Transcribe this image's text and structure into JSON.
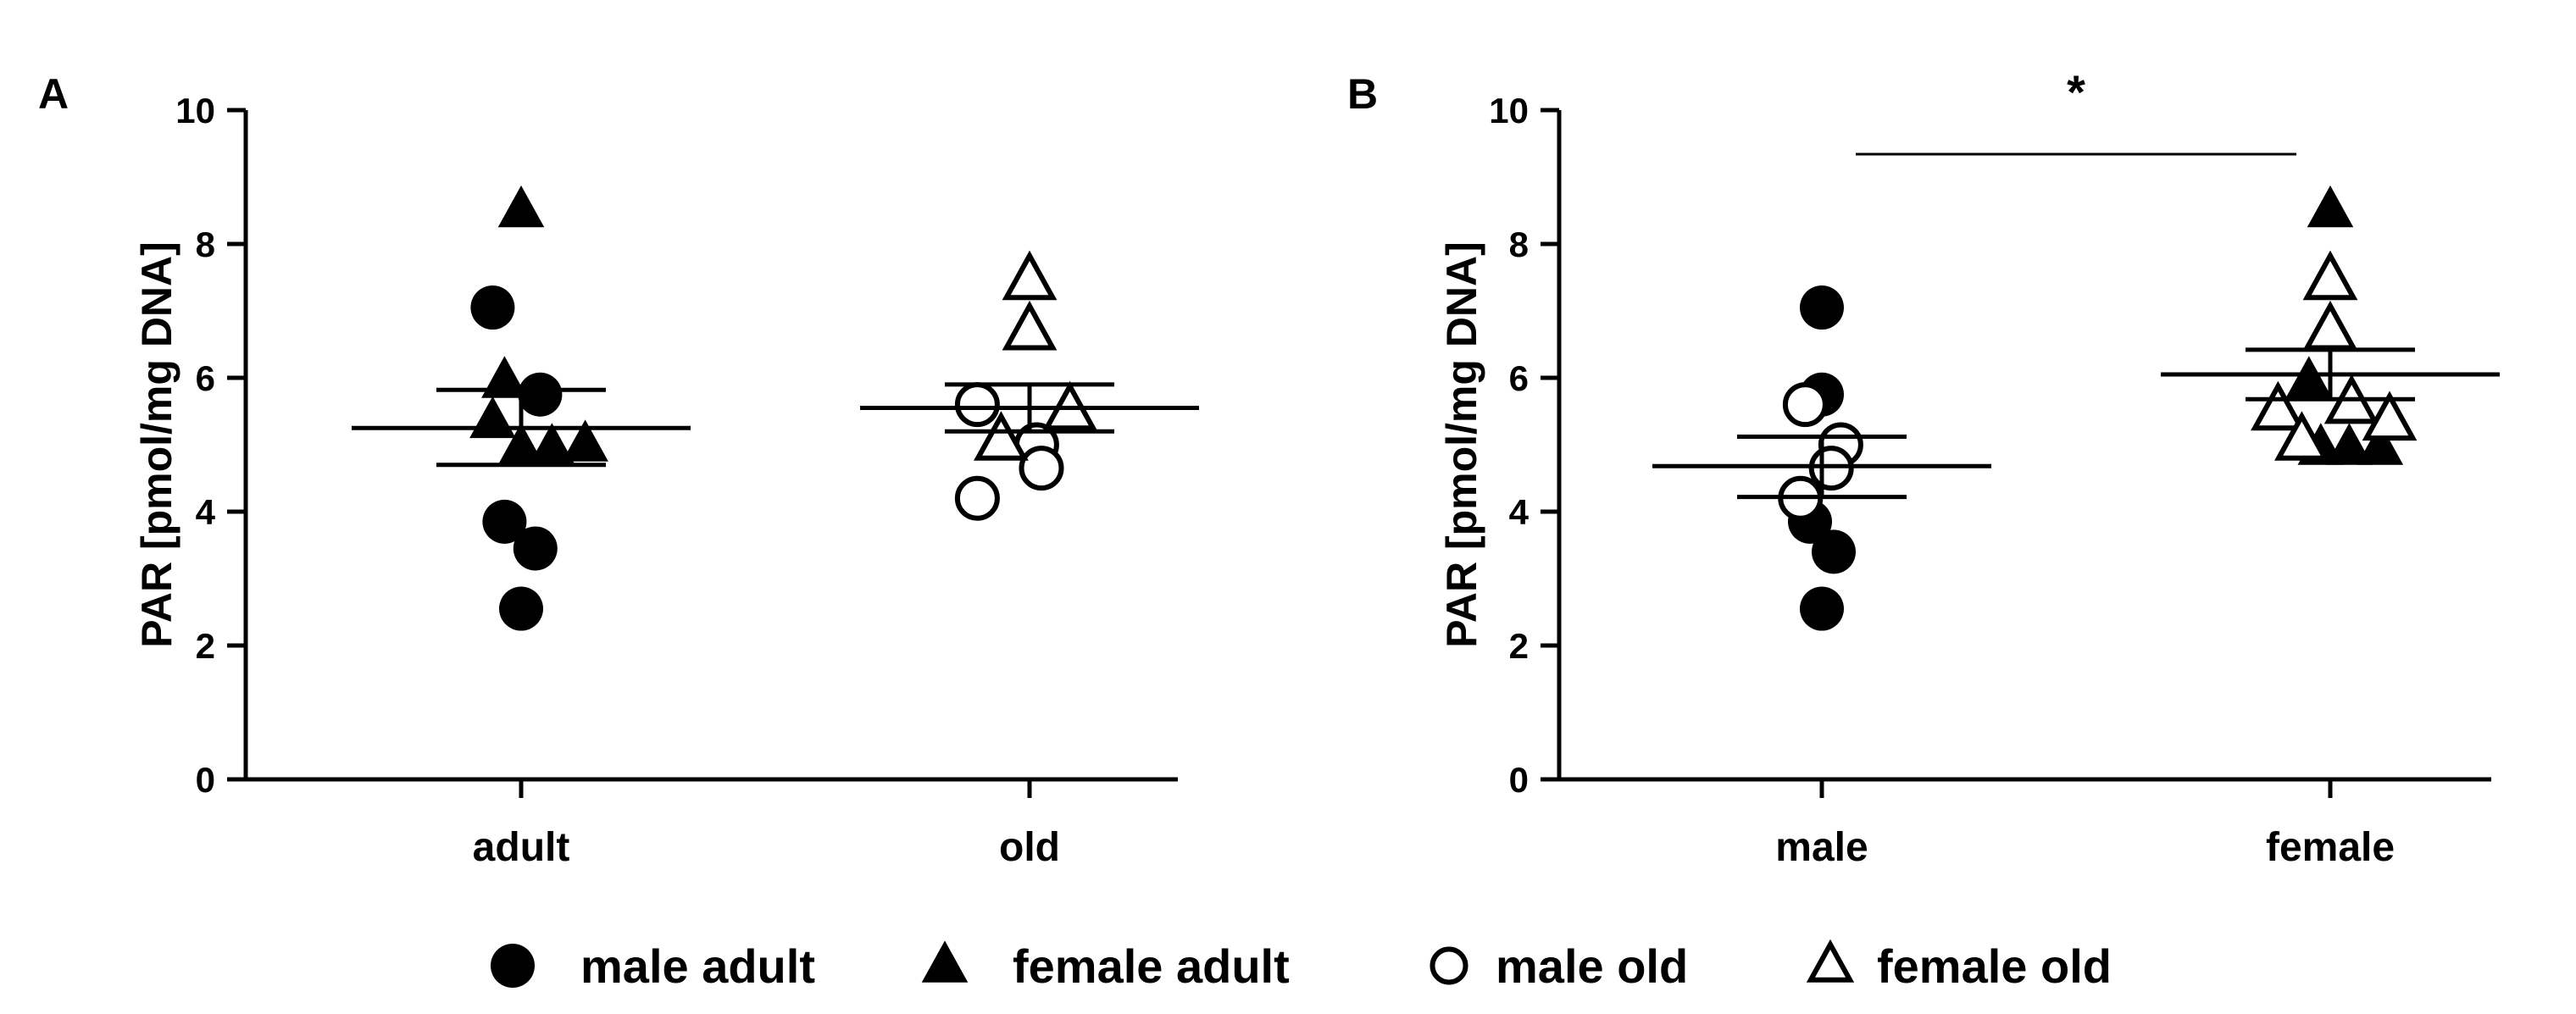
{
  "chart_data": [
    {
      "type": "scatter",
      "panel": "A",
      "ylabel": "PAR [pmol/mg DNA]",
      "xlabel": "",
      "ylim": [
        0,
        10
      ],
      "yticks": [
        "0",
        "2",
        "4",
        "6",
        "8",
        "10"
      ],
      "categories": [
        "adult",
        "old"
      ],
      "groups": [
        {
          "category": "adult",
          "mean": 5.25,
          "sem": [
            4.7,
            5.82
          ],
          "points": [
            {
              "marker": "filled-circle",
              "x": -0.12,
              "y": 7.05
            },
            {
              "marker": "filled-circle",
              "x": 0.08,
              "y": 5.75
            },
            {
              "marker": "filled-circle",
              "x": -0.07,
              "y": 3.85
            },
            {
              "marker": "filled-circle",
              "x": 0.06,
              "y": 3.45
            },
            {
              "marker": "filled-circle",
              "x": 0.0,
              "y": 2.55
            },
            {
              "marker": "filled-triangle",
              "x": 0.0,
              "y": 8.5
            },
            {
              "marker": "filled-triangle",
              "x": -0.07,
              "y": 5.95
            },
            {
              "marker": "filled-triangle",
              "x": -0.12,
              "y": 5.35
            },
            {
              "marker": "filled-triangle",
              "x": 0.0,
              "y": 4.95
            },
            {
              "marker": "filled-triangle",
              "x": 0.13,
              "y": 4.95
            },
            {
              "marker": "filled-triangle",
              "x": 0.27,
              "y": 5.0
            }
          ]
        },
        {
          "category": "old",
          "mean": 5.55,
          "sem": [
            5.2,
            5.9
          ],
          "points": [
            {
              "marker": "open-circle",
              "x": -0.22,
              "y": 5.6
            },
            {
              "marker": "open-circle",
              "x": 0.03,
              "y": 5.0
            },
            {
              "marker": "open-circle",
              "x": 0.05,
              "y": 4.65
            },
            {
              "marker": "open-circle",
              "x": -0.22,
              "y": 4.2
            },
            {
              "marker": "open-triangle",
              "x": 0.0,
              "y": 7.45
            },
            {
              "marker": "open-triangle",
              "x": 0.0,
              "y": 6.7
            },
            {
              "marker": "open-triangle",
              "x": 0.17,
              "y": 5.5
            },
            {
              "marker": "open-triangle",
              "x": -0.12,
              "y": 5.05
            }
          ]
        }
      ]
    },
    {
      "type": "scatter",
      "panel": "B",
      "ylabel": "PAR [pmol/mg DNA]",
      "xlabel": "",
      "ylim": [
        0,
        10
      ],
      "yticks": [
        "0",
        "2",
        "4",
        "6",
        "8",
        "10"
      ],
      "categories": [
        "male",
        "female"
      ],
      "significance": {
        "between": [
          "male",
          "female"
        ],
        "label": "*"
      },
      "groups": [
        {
          "category": "male",
          "mean": 4.68,
          "sem": [
            4.22,
            5.12
          ],
          "points": [
            {
              "marker": "filled-circle",
              "x": 0.0,
              "y": 7.05
            },
            {
              "marker": "filled-circle",
              "x": 0.0,
              "y": 5.75
            },
            {
              "marker": "filled-circle",
              "x": -0.05,
              "y": 3.85
            },
            {
              "marker": "filled-circle",
              "x": 0.05,
              "y": 3.4
            },
            {
              "marker": "filled-circle",
              "x": 0.0,
              "y": 2.55
            },
            {
              "marker": "open-circle",
              "x": -0.07,
              "y": 5.6
            },
            {
              "marker": "open-circle",
              "x": 0.08,
              "y": 5.0
            },
            {
              "marker": "open-circle",
              "x": 0.04,
              "y": 4.65
            },
            {
              "marker": "open-circle",
              "x": -0.09,
              "y": 4.2
            }
          ]
        },
        {
          "category": "female",
          "mean": 6.05,
          "sem": [
            5.68,
            6.42
          ],
          "points": [
            {
              "marker": "filled-triangle",
              "x": 0.0,
              "y": 8.5
            },
            {
              "marker": "filled-triangle",
              "x": -0.09,
              "y": 5.95
            },
            {
              "marker": "filled-triangle",
              "x": -0.04,
              "y": 4.95
            },
            {
              "marker": "filled-triangle",
              "x": 0.08,
              "y": 4.95
            },
            {
              "marker": "filled-triangle",
              "x": 0.21,
              "y": 4.95
            },
            {
              "marker": "open-triangle",
              "x": 0.0,
              "y": 7.45
            },
            {
              "marker": "open-triangle",
              "x": 0.0,
              "y": 6.7
            },
            {
              "marker": "open-triangle",
              "x": 0.09,
              "y": 5.6
            },
            {
              "marker": "open-triangle",
              "x": -0.22,
              "y": 5.5
            },
            {
              "marker": "open-triangle",
              "x": 0.25,
              "y": 5.35
            },
            {
              "marker": "open-triangle",
              "x": -0.12,
              "y": 5.05
            }
          ]
        }
      ]
    }
  ],
  "legend": {
    "placement": "bottom-center",
    "items": [
      {
        "marker": "filled-circle",
        "label": "male adult"
      },
      {
        "marker": "filled-triangle",
        "label": "female adult"
      },
      {
        "marker": "open-circle",
        "label": "male old"
      },
      {
        "marker": "open-triangle",
        "label": "female old"
      }
    ]
  }
}
